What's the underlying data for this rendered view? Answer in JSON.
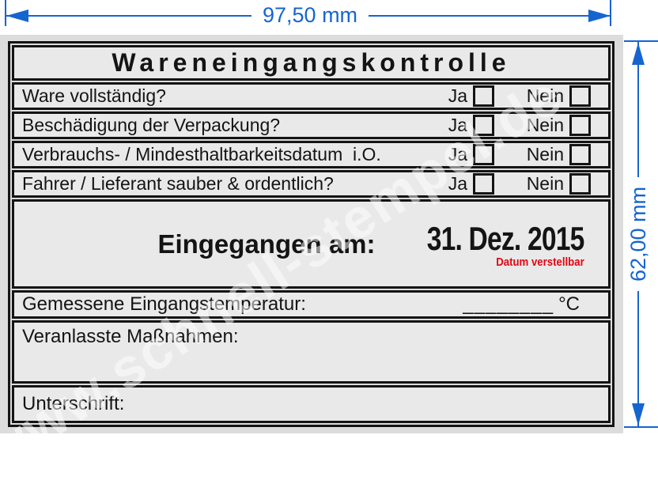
{
  "dimensions": {
    "width_label": "97,50 mm",
    "height_label": "62,00 mm"
  },
  "colors": {
    "accent_blue": "#1565cf",
    "warning_red": "#e30613",
    "stamp_ink": "#141414",
    "pad_gray": "#dcdcdc",
    "cell_gray": "#e9e9e9",
    "page_white": "#ffffff"
  },
  "watermark_text": "www.schnell-stempel.de",
  "stamp": {
    "title": "Wareneingangskontrolle",
    "questions": [
      {
        "label": "Ware vollständig?",
        "yes_label": "Ja",
        "no_label": "Nein"
      },
      {
        "label": "Beschädigung der Verpackung?",
        "yes_label": "Ja",
        "no_label": "Nein"
      },
      {
        "label": "Verbrauchs- / Mindesthaltbarkeitsdatum  i.O.",
        "yes_label": "Ja",
        "no_label": "Nein"
      },
      {
        "label": "Fahrer / Lieferant sauber & ordentlich?",
        "yes_label": "Ja",
        "no_label": "Nein"
      }
    ],
    "date_row": {
      "label": "Eingegangen am:",
      "date": "31. Dez. 2015",
      "note": "Datum verstellbar"
    },
    "temperature_row": {
      "label": "Gemessene Eingangstemperatur:",
      "blank": "________",
      "unit": "°C"
    },
    "measures_row": {
      "label": "Veranlasste Maßnahmen:"
    },
    "signature_row": {
      "label": "Unterschrift:"
    }
  }
}
